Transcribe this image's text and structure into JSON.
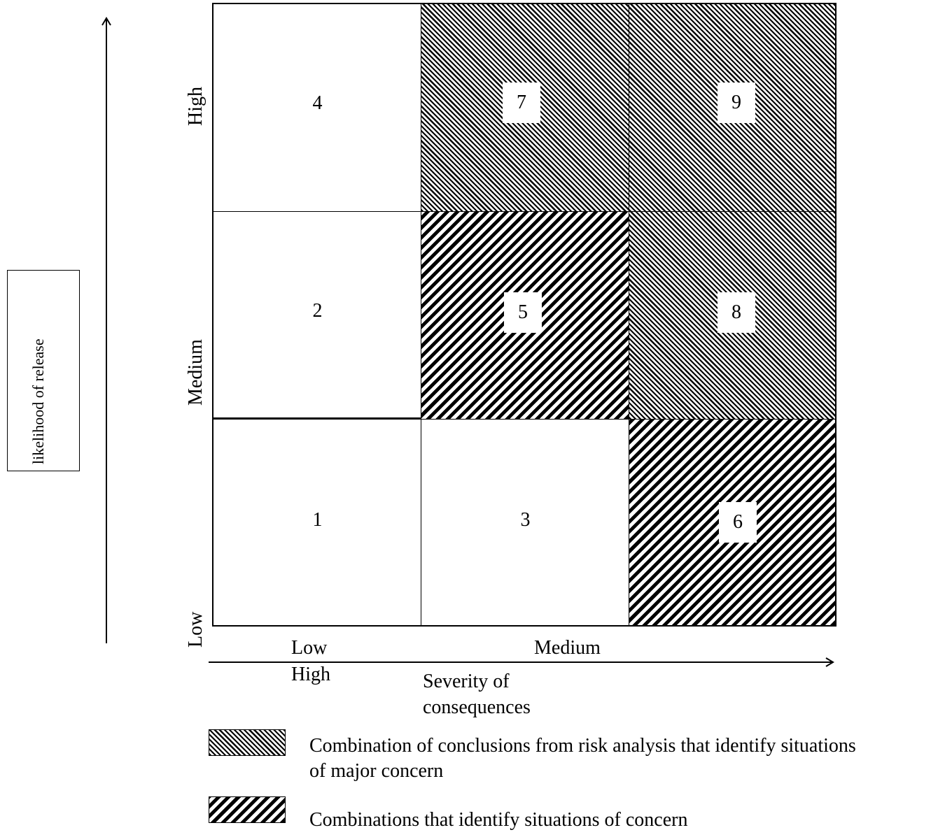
{
  "y_axis": {
    "title": "likelihood of release",
    "levels": {
      "low": "Low",
      "medium": "Medium",
      "high": "High"
    }
  },
  "x_axis": {
    "title_line1": "Severity of",
    "title_line2": "consequences",
    "levels": {
      "low": "Low",
      "medium": "Medium",
      "high": "High"
    }
  },
  "matrix": {
    "row_high": {
      "low": "4",
      "medium": "7",
      "high": "9"
    },
    "row_medium": {
      "low": "2",
      "medium": "5",
      "high": "8"
    },
    "row_low": {
      "low": "1",
      "medium": "3",
      "high": "6"
    }
  },
  "legend": {
    "major_concern_line1": "Combination of conclusions from risk analysis that identify situations",
    "major_concern_line2": "of major concern",
    "concern": "Combinations that identify situations of concern"
  }
}
